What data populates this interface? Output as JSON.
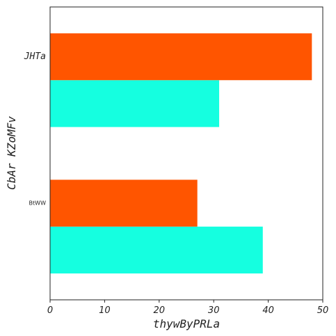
{
  "chart_data": {
    "type": "bar",
    "orientation": "horizontal",
    "categories": [
      "BtWW",
      "JHTa"
    ],
    "series": [
      {
        "color": "#15ffe0",
        "values": [
          39,
          31
        ]
      },
      {
        "color": "#ff5500",
        "values": [
          27,
          48
        ]
      }
    ],
    "xlabel": "thywByPRLa",
    "ylabel": "CbAr KZoMFv",
    "xlim": [
      0,
      50
    ],
    "xticks": [
      0,
      10,
      20,
      30,
      40,
      50
    ],
    "grid": false,
    "legend": "none"
  }
}
